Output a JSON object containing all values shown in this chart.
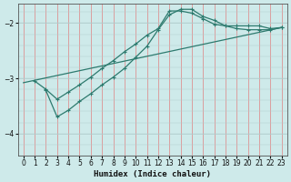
{
  "xlabel": "Humidex (Indice chaleur)",
  "background_color": "#ceeaea",
  "grid_color_v": "#e08080",
  "grid_color_h": "#b0cccc",
  "line_color": "#2d7a6e",
  "xlim": [
    -0.5,
    23.5
  ],
  "ylim": [
    -4.4,
    -1.65
  ],
  "yticks": [
    -4,
    -3,
    -2
  ],
  "xticks": [
    0,
    1,
    2,
    3,
    4,
    5,
    6,
    7,
    8,
    9,
    10,
    11,
    12,
    13,
    14,
    15,
    16,
    17,
    18,
    19,
    20,
    21,
    22,
    23
  ],
  "line1_x": [
    1,
    2,
    3,
    4,
    5,
    6,
    7,
    8,
    9,
    10,
    11,
    12,
    13,
    14,
    15,
    16,
    17,
    18,
    19,
    20,
    21,
    22,
    23
  ],
  "line1_y": [
    -3.05,
    -3.2,
    -3.38,
    -3.25,
    -3.12,
    -2.98,
    -2.82,
    -2.68,
    -2.52,
    -2.38,
    -2.22,
    -2.1,
    -1.78,
    -1.78,
    -1.82,
    -1.92,
    -2.02,
    -2.05,
    -2.05,
    -2.05,
    -2.05,
    -2.1,
    -2.08
  ],
  "line2_x": [
    2,
    3,
    4,
    5,
    6,
    7,
    8,
    9,
    10,
    11,
    12,
    13,
    14,
    15,
    16,
    17,
    18,
    19,
    20,
    21,
    22,
    23
  ],
  "line2_y": [
    -3.22,
    -3.7,
    -3.58,
    -3.42,
    -3.28,
    -3.12,
    -2.98,
    -2.82,
    -2.62,
    -2.42,
    -2.12,
    -1.85,
    -1.75,
    -1.75,
    -1.88,
    -1.95,
    -2.05,
    -2.1,
    -2.12,
    -2.12,
    -2.12,
    -2.08
  ],
  "line3_x": [
    0,
    23
  ],
  "line3_y": [
    -3.08,
    -2.08
  ]
}
